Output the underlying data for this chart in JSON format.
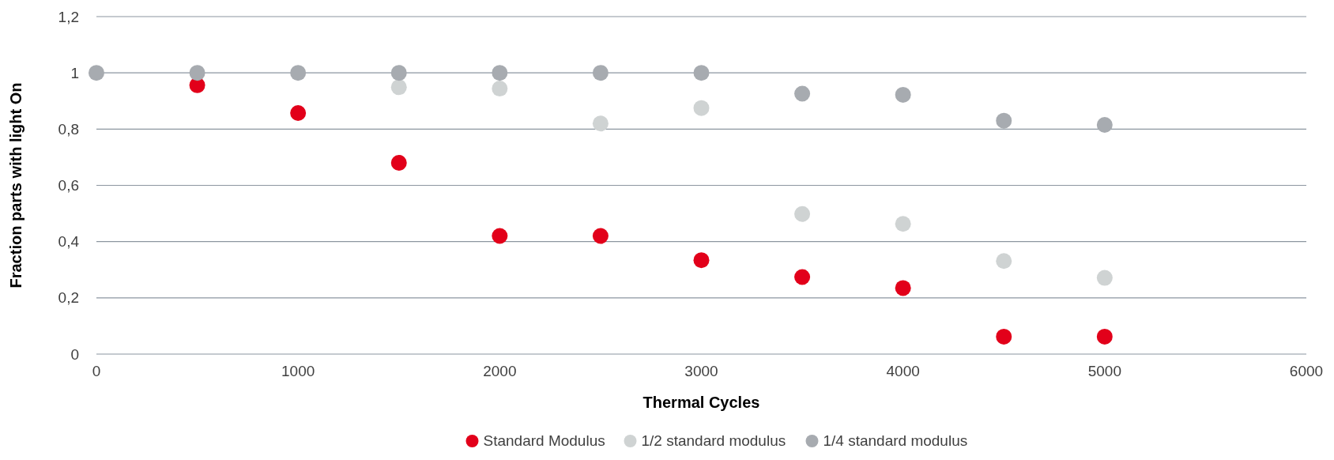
{
  "chart_data": {
    "type": "scatter",
    "xlabel": "Thermal Cycles",
    "ylabel": "Fraction parts with light On",
    "x": [
      0,
      500,
      1000,
      1500,
      2000,
      2500,
      3000,
      3500,
      4000,
      4500,
      5000
    ],
    "series": [
      {
        "name": "Standard Modulus",
        "color": "#e2001a",
        "values": [
          null,
          0.956,
          0.857,
          0.68,
          0.42,
          0.42,
          0.334,
          0.274,
          0.235,
          0.062,
          0.062
        ]
      },
      {
        "name": "1/2 standard modulus",
        "color": "#cfd3d3",
        "values": [
          null,
          null,
          null,
          0.949,
          0.944,
          0.82,
          0.875,
          0.498,
          0.463,
          0.331,
          0.271
        ]
      },
      {
        "name": "1/4 standard modulus",
        "color": "#a7abb0",
        "values": [
          1,
          1,
          1,
          1,
          1,
          1,
          1,
          0.926,
          0.922,
          0.83,
          0.815
        ]
      }
    ],
    "xlim": [
      0,
      6000
    ],
    "xticks": [
      0,
      1000,
      2000,
      3000,
      4000,
      5000,
      6000
    ],
    "ylim": [
      0,
      1.2
    ],
    "yticks": [
      0,
      {
        "value": 0.2,
        "label": "0,2"
      },
      {
        "value": 0.4,
        "label": "0,4"
      },
      {
        "value": 0.6,
        "label": "0,6"
      },
      {
        "value": 0.8,
        "label": "0,8"
      },
      1,
      {
        "value": 1.2,
        "label": "1,2"
      }
    ],
    "grid": "y",
    "legend": "bottom",
    "marker": "circle"
  }
}
